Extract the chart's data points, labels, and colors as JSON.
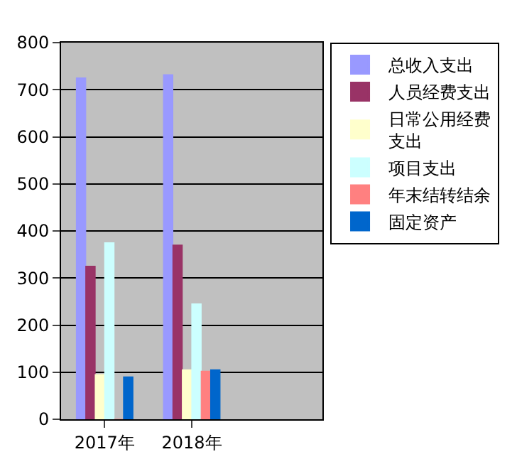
{
  "chart_data": {
    "type": "bar",
    "categories": [
      "2017年",
      "2018年",
      null
    ],
    "series": [
      {
        "name": "总收入支出",
        "color": "#9999ff",
        "values": [
          725,
          732,
          null
        ]
      },
      {
        "name": "人员经费支出",
        "color": "#993366",
        "values": [
          325,
          370,
          null
        ]
      },
      {
        "name": "日常公用经费支出",
        "color": "#ffffcc",
        "values": [
          95,
          105,
          null
        ]
      },
      {
        "name": "项目支出",
        "color": "#ccffff",
        "values": [
          375,
          245,
          null
        ]
      },
      {
        "name": "年末结转结余",
        "color": "#ff8080",
        "values": [
          0,
          102,
          null
        ]
      },
      {
        "name": "固定资产",
        "color": "#0066cc",
        "values": [
          90,
          105,
          null
        ]
      }
    ],
    "ylim": [
      0,
      800
    ],
    "yticks": [
      0,
      100,
      200,
      300,
      400,
      500,
      600,
      700,
      800
    ],
    "grid": "y",
    "legend": "right"
  }
}
